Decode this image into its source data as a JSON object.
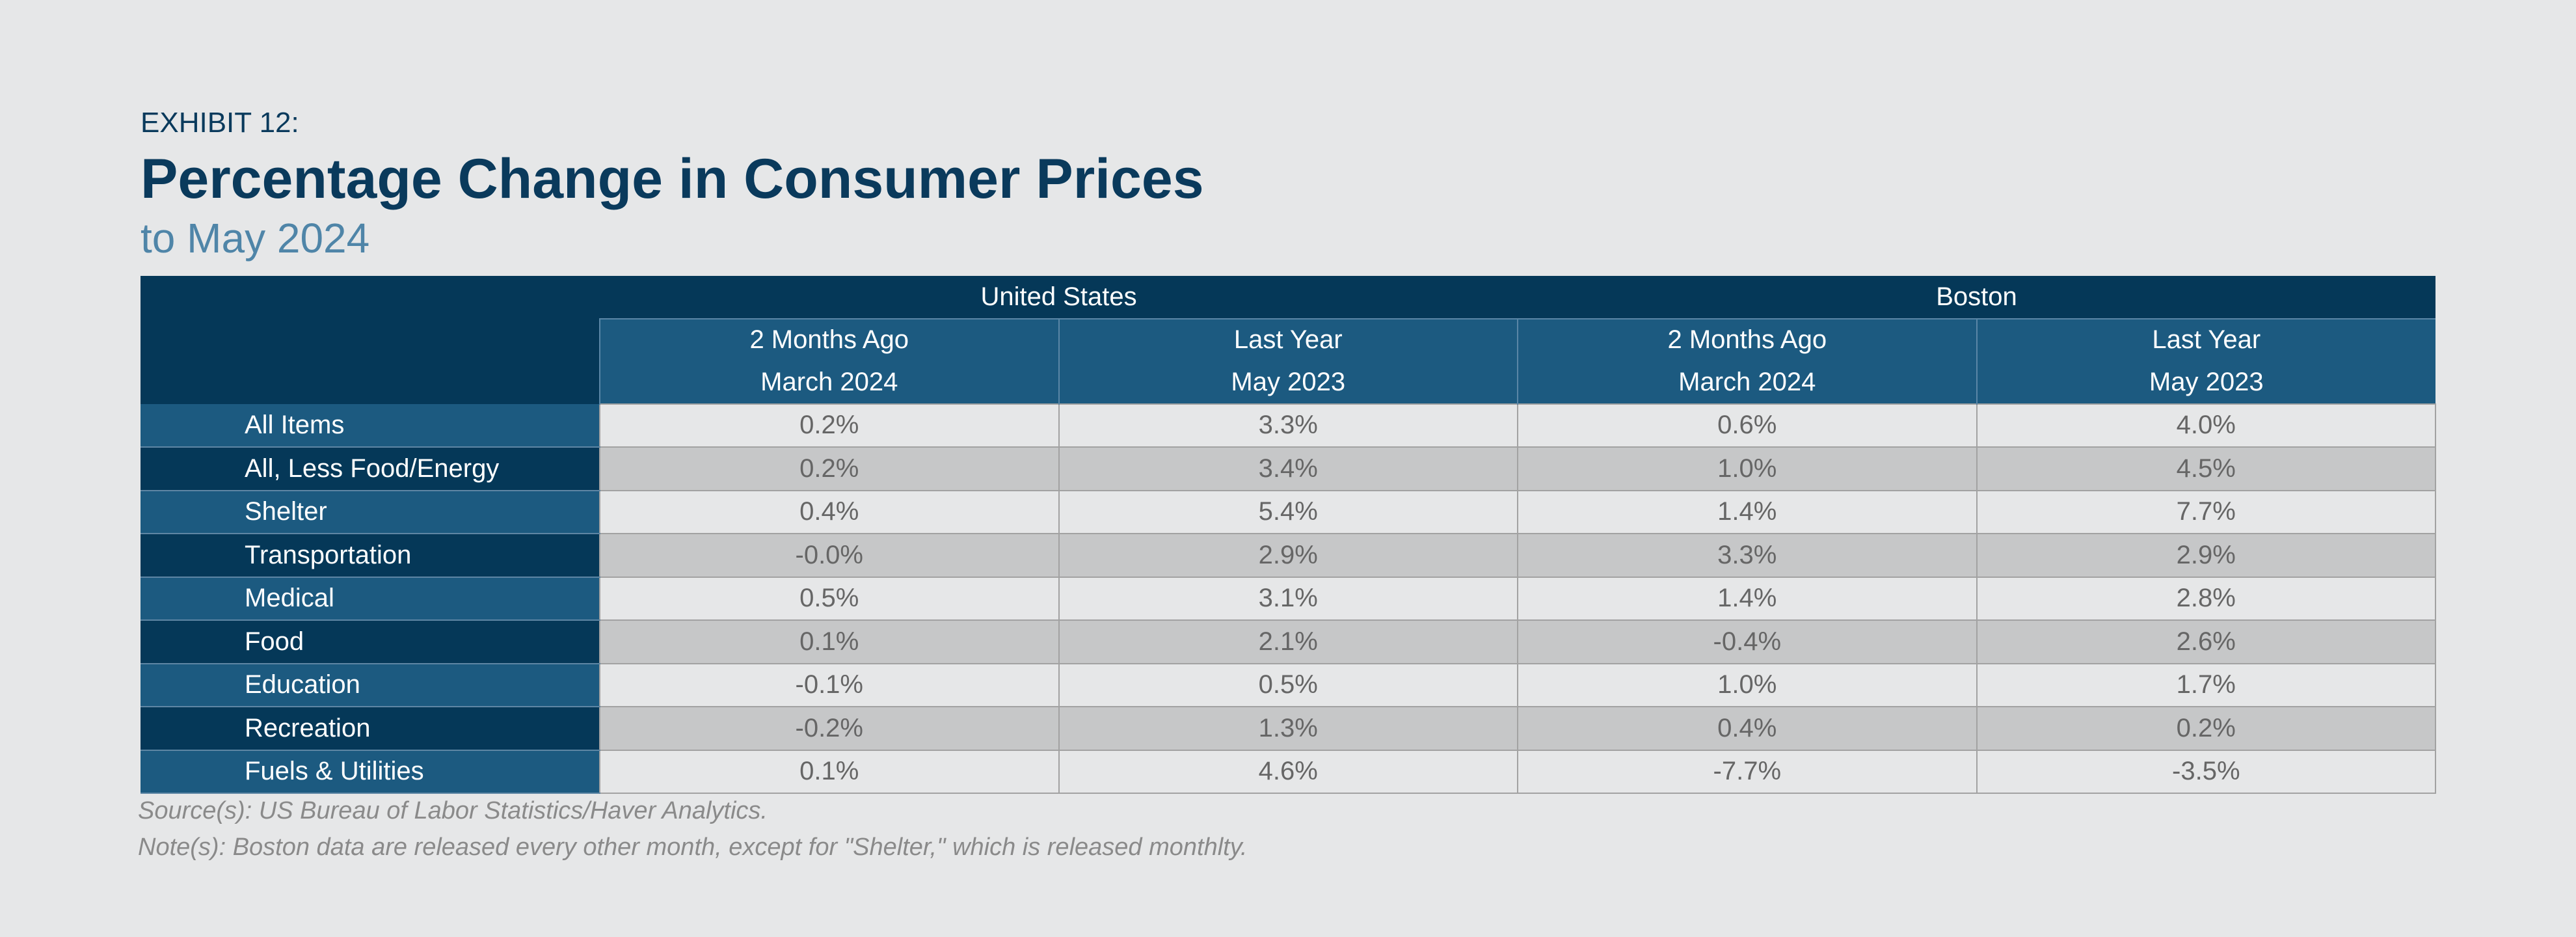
{
  "header": {
    "exhibit": "EXHIBIT 12:",
    "title": "Percentage Change in Consumer Prices",
    "subtitle": "to May 2024"
  },
  "chart_data": {
    "type": "table",
    "title": "Percentage Change in Consumer Prices",
    "subtitle": "to May 2024",
    "column_groups": [
      {
        "name": "United States",
        "columns": [
          {
            "line1": "2 Months Ago",
            "line2": "March 2024"
          },
          {
            "line1": "Last Year",
            "line2": "May 2023"
          }
        ]
      },
      {
        "name": "Boston",
        "columns": [
          {
            "line1": "2 Months Ago",
            "line2": "March 2024"
          },
          {
            "line1": "Last Year",
            "line2": "May 2023"
          }
        ]
      }
    ],
    "rows": [
      {
        "label": "All Items",
        "values": [
          "0.2%",
          "3.3%",
          "0.6%",
          "4.0%"
        ]
      },
      {
        "label": "All, Less Food/Energy",
        "values": [
          "0.2%",
          "3.4%",
          "1.0%",
          "4.5%"
        ]
      },
      {
        "label": "Shelter",
        "values": [
          "0.4%",
          "5.4%",
          "1.4%",
          "7.7%"
        ]
      },
      {
        "label": "Transportation",
        "values": [
          "-0.0%",
          "2.9%",
          "3.3%",
          "2.9%"
        ]
      },
      {
        "label": "Medical",
        "values": [
          "0.5%",
          "3.1%",
          "1.4%",
          "2.8%"
        ]
      },
      {
        "label": "Food",
        "values": [
          "0.1%",
          "2.1%",
          "-0.4%",
          "2.6%"
        ]
      },
      {
        "label": "Education",
        "values": [
          "-0.1%",
          "0.5%",
          "1.0%",
          "1.7%"
        ]
      },
      {
        "label": "Recreation",
        "values": [
          "-0.2%",
          "1.3%",
          "0.4%",
          "0.2%"
        ]
      },
      {
        "label": "Fuels & Utilities",
        "values": [
          "0.1%",
          "4.6%",
          "-7.7%",
          "-3.5%"
        ]
      }
    ]
  },
  "footer": {
    "source": "Source(s): US Bureau of Labor Statistics/Haver Analytics.",
    "note": "Note(s): Boston data are released every other month, except for \"Shelter,\" which is released monthlty."
  }
}
